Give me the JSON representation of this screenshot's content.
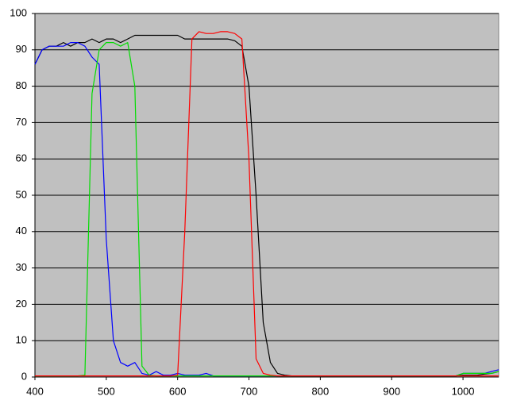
{
  "chart_data": {
    "type": "line",
    "x": [
      400,
      410,
      420,
      430,
      440,
      450,
      460,
      470,
      480,
      490,
      500,
      510,
      520,
      530,
      540,
      550,
      560,
      570,
      580,
      590,
      600,
      610,
      620,
      630,
      640,
      650,
      660,
      670,
      680,
      690,
      700,
      710,
      720,
      730,
      740,
      750,
      760,
      770,
      780,
      790,
      800,
      810,
      820,
      830,
      840,
      850,
      860,
      870,
      880,
      890,
      900,
      910,
      920,
      930,
      940,
      950,
      960,
      970,
      980,
      990,
      1000,
      1010,
      1020,
      1030,
      1040,
      1050
    ],
    "series": [
      {
        "color": "#000000",
        "values": [
          86,
          90,
          91,
          91,
          92,
          91,
          92,
          92,
          93,
          92,
          93,
          93,
          92,
          93,
          94,
          94,
          94,
          94,
          94,
          94,
          94,
          93,
          93,
          93,
          93,
          93,
          93,
          93,
          92.5,
          91,
          80,
          50,
          15,
          4,
          1,
          0.5,
          0.3,
          0.3,
          0.3,
          0.3,
          0.3,
          0.3,
          0.3,
          0.3,
          0.3,
          0.3,
          0.3,
          0.3,
          0.3,
          0.3,
          0.3,
          0.3,
          0.3,
          0.3,
          0.3,
          0.3,
          0.3,
          0.3,
          0.3,
          0.3,
          0.5,
          0.5,
          0.5,
          0.8,
          1,
          1.5
        ]
      },
      {
        "color": "#0000ff",
        "values": [
          86,
          90,
          91,
          91,
          91,
          92,
          92,
          91,
          88,
          86,
          38,
          10,
          4,
          3,
          4,
          1,
          0.5,
          1.5,
          0.5,
          0.5,
          1,
          0.5,
          0.5,
          0.5,
          1,
          0.3,
          0.3,
          0.3,
          0.3,
          0.3,
          0.3,
          0.3,
          0.3,
          0.3,
          0.3,
          0.3,
          0.3,
          0.3,
          0.3,
          0.3,
          0.3,
          0.3,
          0.3,
          0.3,
          0.3,
          0.3,
          0.3,
          0.3,
          0.3,
          0.3,
          0.3,
          0.3,
          0.3,
          0.3,
          0.3,
          0.3,
          0.3,
          0.3,
          0.3,
          0.3,
          1,
          1,
          1,
          1,
          1.5,
          2
        ]
      },
      {
        "color": "#00dd00",
        "values": [
          0.3,
          0.3,
          0.3,
          0.3,
          0.3,
          0.3,
          0.3,
          0.5,
          78,
          90,
          92,
          92,
          91,
          92,
          80,
          3,
          0.5,
          0.3,
          0.3,
          0.3,
          0.3,
          0.3,
          0.3,
          0.3,
          0.3,
          0.3,
          0.3,
          0.3,
          0.3,
          0.3,
          0.3,
          0.3,
          0.3,
          0.3,
          0.3,
          0.3,
          0.3,
          0.3,
          0.3,
          0.3,
          0.3,
          0.3,
          0.3,
          0.3,
          0.3,
          0.3,
          0.3,
          0.3,
          0.3,
          0.3,
          0.3,
          0.3,
          0.3,
          0.3,
          0.3,
          0.3,
          0.3,
          0.3,
          0.3,
          0.3,
          1,
          1,
          1,
          1,
          1,
          1.5
        ]
      },
      {
        "color": "#ff0000",
        "values": [
          0.3,
          0.3,
          0.3,
          0.3,
          0.3,
          0.3,
          0.3,
          0.3,
          0.3,
          0.3,
          0.3,
          0.3,
          0.3,
          0.3,
          0.3,
          0.3,
          0.3,
          0.3,
          0.3,
          0.3,
          0.5,
          40,
          93,
          95,
          94.5,
          94.5,
          95,
          95,
          94.5,
          93,
          60,
          5,
          1,
          0.5,
          0.3,
          0.3,
          0.3,
          0.3,
          0.3,
          0.3,
          0.3,
          0.3,
          0.3,
          0.3,
          0.3,
          0.3,
          0.3,
          0.3,
          0.3,
          0.3,
          0.3,
          0.3,
          0.3,
          0.3,
          0.3,
          0.3,
          0.3,
          0.3,
          0.3,
          0.3,
          0.3,
          0.3,
          0.3,
          0.3,
          0.3,
          0.3
        ]
      }
    ],
    "xlim": [
      400,
      1050
    ],
    "xticks": [
      400,
      500,
      600,
      700,
      800,
      900,
      1000
    ],
    "ylim": [
      0,
      100
    ],
    "yticks": [
      0,
      10,
      20,
      30,
      40,
      50,
      60,
      70,
      80,
      90,
      100
    ],
    "grid": true,
    "background": "#c0c0c0"
  }
}
